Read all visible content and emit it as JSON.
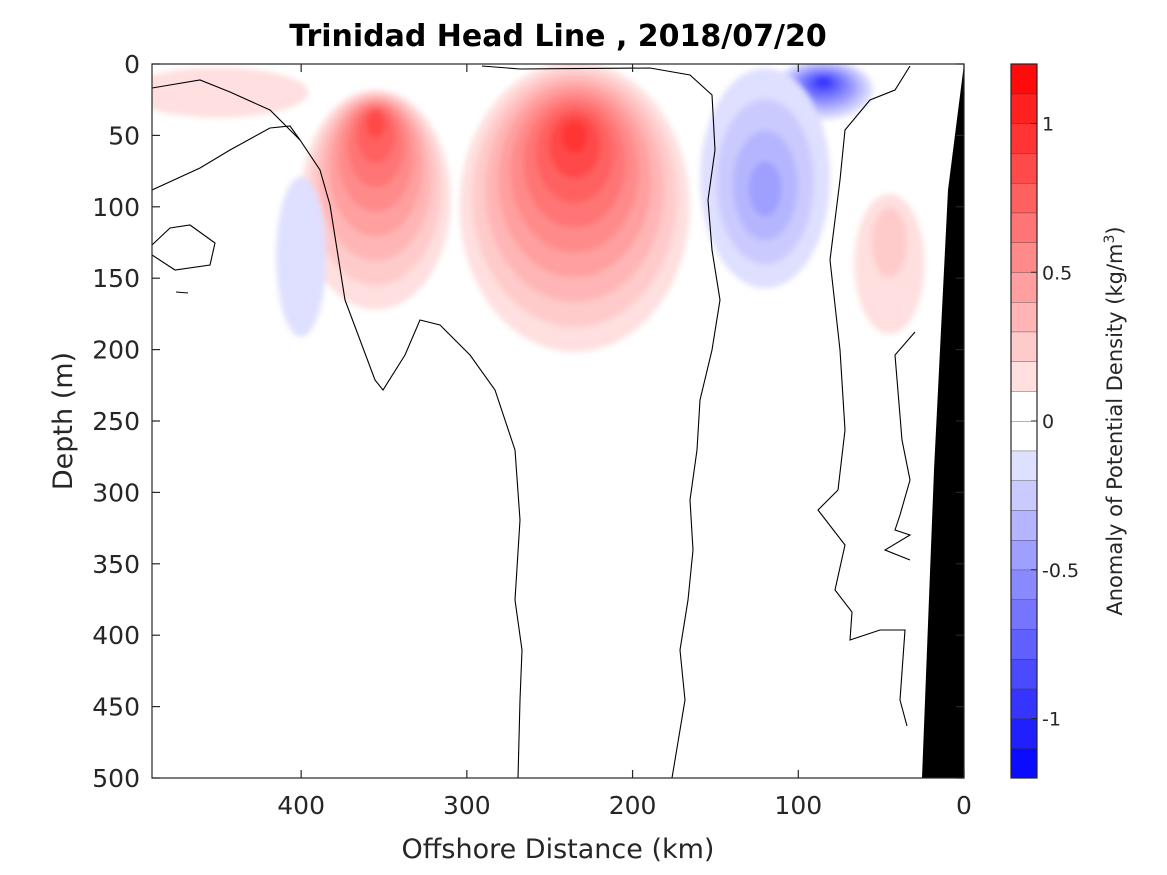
{
  "chart_data": {
    "type": "heatmap",
    "title": "Trinidad Head Line , 2018/07/20",
    "xlabel": "Offshore Distance (km)",
    "ylabel": "Depth (m)",
    "xlim": [
      490,
      0
    ],
    "ylim": [
      0,
      500
    ],
    "x_ticks": [
      "400",
      "300",
      "200",
      "100",
      "0"
    ],
    "x_tick_values": [
      400,
      300,
      200,
      100,
      0
    ],
    "y_ticks": [
      "0",
      "50",
      "100",
      "150",
      "200",
      "250",
      "300",
      "350",
      "400",
      "450",
      "500"
    ],
    "y_tick_values": [
      0,
      50,
      100,
      150,
      200,
      250,
      300,
      350,
      400,
      450,
      500
    ],
    "colorbar": {
      "label": "Anomaly of Potential Density (kg/m",
      "label_superscript": "3",
      "label_suffix": ")",
      "range": [
        -1.2,
        1.2
      ],
      "step": 0.1,
      "ticks": [
        "1",
        "0.5",
        "0",
        "-0.5",
        "-1"
      ],
      "tick_values": [
        1,
        0.5,
        0,
        -0.5,
        -1
      ],
      "colormap": "blue-white-red"
    },
    "anomaly_features": [
      {
        "sign": "positive",
        "x": 355,
        "y": 35,
        "peak": 0.8
      },
      {
        "sign": "positive",
        "x": 235,
        "y": 45,
        "peak": 0.9
      },
      {
        "sign": "positive",
        "x": 45,
        "y": 110,
        "peak": 0.2
      },
      {
        "sign": "positive",
        "x": 450,
        "y": 15,
        "peak": 0.1
      },
      {
        "sign": "negative",
        "x": 85,
        "y": 12,
        "peak": -0.9
      },
      {
        "sign": "negative",
        "x": 120,
        "y": 90,
        "peak": -0.4
      },
      {
        "sign": "negative",
        "x": 400,
        "y": 140,
        "peak": -0.15
      }
    ],
    "bathymetry": {
      "color": "#000000",
      "shelf": [
        [
          0,
          0
        ],
        [
          15,
          90
        ],
        [
          25,
          500
        ],
        [
          0,
          500
        ]
      ]
    },
    "zero_contour_color": "#000000",
    "grid": false
  }
}
